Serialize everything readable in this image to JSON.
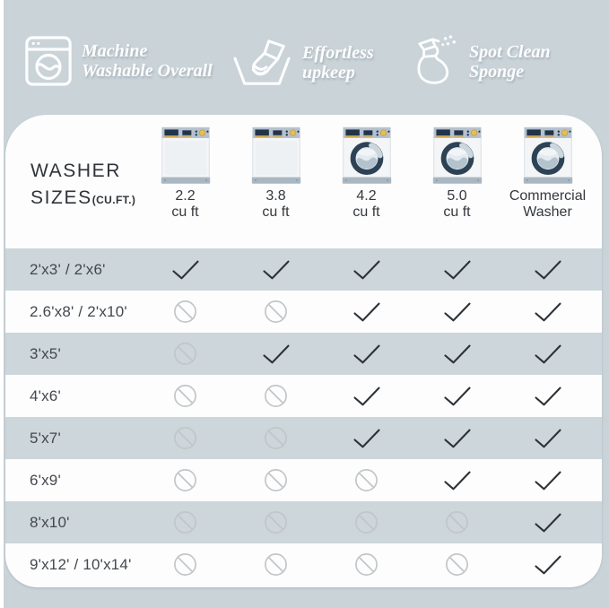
{
  "page": {
    "background": "#c9d3d8",
    "card_background": "#fdfdfd",
    "stripe_background": "#ccd6db"
  },
  "header": {
    "features": [
      {
        "icon": "washing-machine-icon",
        "label_lines": [
          "Machine",
          "Washable Overall"
        ]
      },
      {
        "icon": "hand-wash-icon",
        "label_lines": [
          "Effortless",
          "upkeep"
        ]
      },
      {
        "icon": "spray-bottle-icon",
        "label_lines": [
          "Spot Clean",
          "Sponge"
        ]
      }
    ],
    "text_color": "#fdfdfe"
  },
  "table": {
    "corner_title": {
      "line1": "WASHER",
      "line2": "SIZES",
      "line2_suffix": "(CU.FT.)"
    },
    "columns": [
      {
        "washer_type": "top-load",
        "label_lines": [
          "2.2",
          "cu ft"
        ]
      },
      {
        "washer_type": "top-load",
        "label_lines": [
          "3.8",
          "cu ft"
        ]
      },
      {
        "washer_type": "front-load",
        "label_lines": [
          "4.2",
          "cu ft"
        ]
      },
      {
        "washer_type": "front-load",
        "label_lines": [
          "5.0",
          "cu ft"
        ]
      },
      {
        "washer_type": "front-load",
        "label_lines": [
          "Commercial",
          "Washer"
        ]
      }
    ],
    "rows": [
      {
        "size": "2'x3' / 2'x6'",
        "cells": [
          "yes",
          "yes",
          "yes",
          "yes",
          "yes"
        ]
      },
      {
        "size": "2.6'x8' / 2'x10'",
        "cells": [
          "no",
          "no",
          "yes",
          "yes",
          "yes"
        ]
      },
      {
        "size": "3'x5'",
        "cells": [
          "no",
          "yes",
          "yes",
          "yes",
          "yes"
        ]
      },
      {
        "size": "4'x6'",
        "cells": [
          "no",
          "no",
          "yes",
          "yes",
          "yes"
        ]
      },
      {
        "size": "5'x7'",
        "cells": [
          "no",
          "no",
          "yes",
          "yes",
          "yes"
        ]
      },
      {
        "size": "6'x9'",
        "cells": [
          "no",
          "no",
          "no",
          "yes",
          "yes"
        ]
      },
      {
        "size": "8'x10'",
        "cells": [
          "no",
          "no",
          "no",
          "no",
          "yes"
        ]
      },
      {
        "size": "9'x12' / 10'x14'",
        "cells": [
          "no",
          "no",
          "no",
          "no",
          "yes"
        ]
      }
    ],
    "marks": {
      "yes": "checkmark-icon",
      "no": "prohibited-icon"
    },
    "colors": {
      "check": "#2c3137",
      "prohibited": "#c2c6c9"
    }
  }
}
